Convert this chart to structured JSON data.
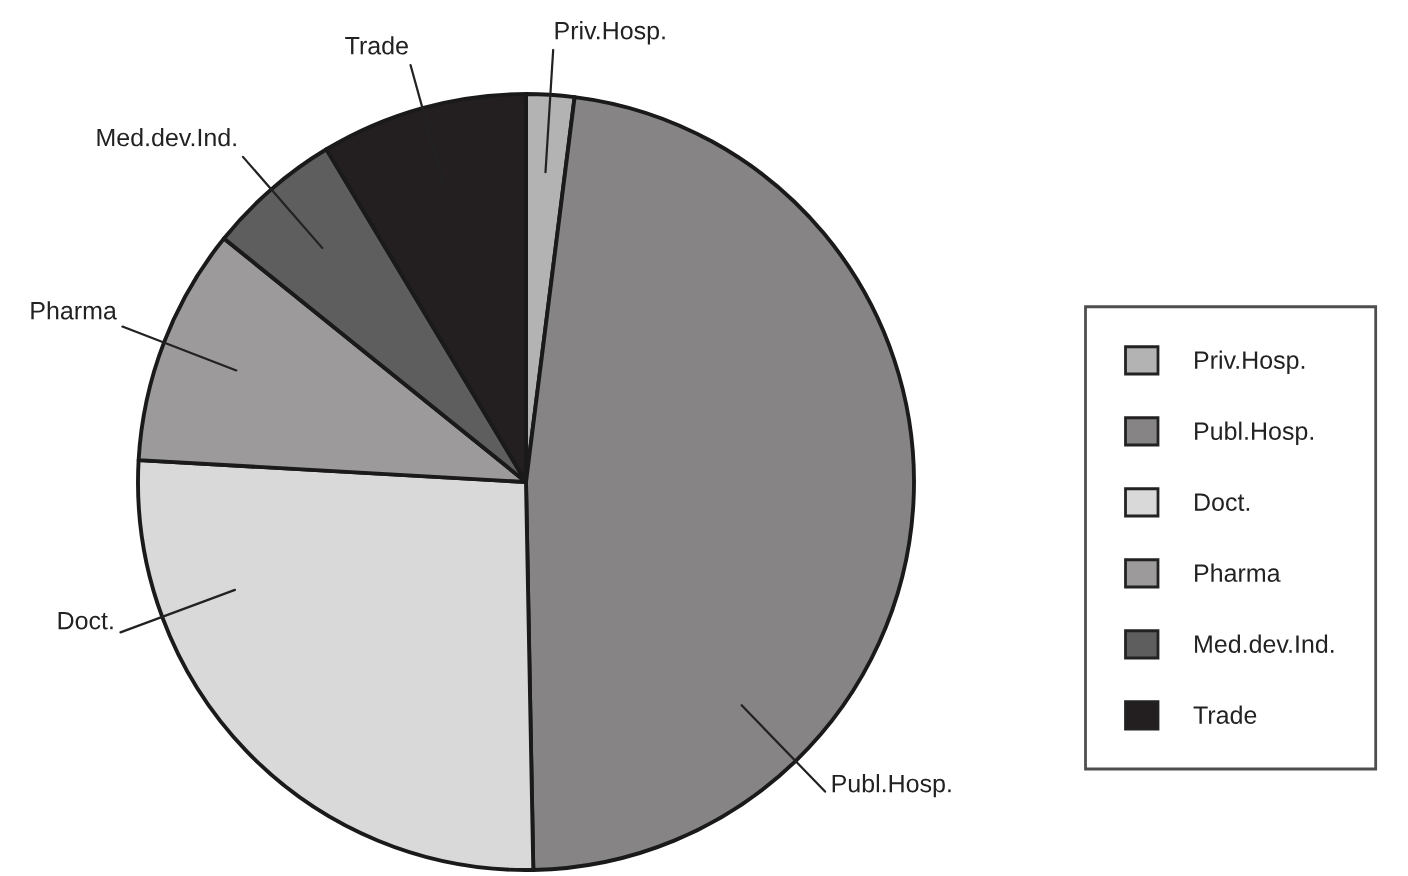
{
  "chart_data": {
    "type": "pie",
    "categories": [
      "Priv.Hosp.",
      "Publ.Hosp.",
      "Doct.",
      "Pharma",
      "Med.dev.Ind.",
      "Trade"
    ],
    "values": [
      2,
      47.7,
      26.2,
      9.9,
      5.6,
      8.6
    ],
    "colors": [
      "#b3b3b3",
      "#868485",
      "#d9d9d9",
      "#9c9a9b",
      "#5e5e5e",
      "#231f20"
    ],
    "legend": "right"
  }
}
